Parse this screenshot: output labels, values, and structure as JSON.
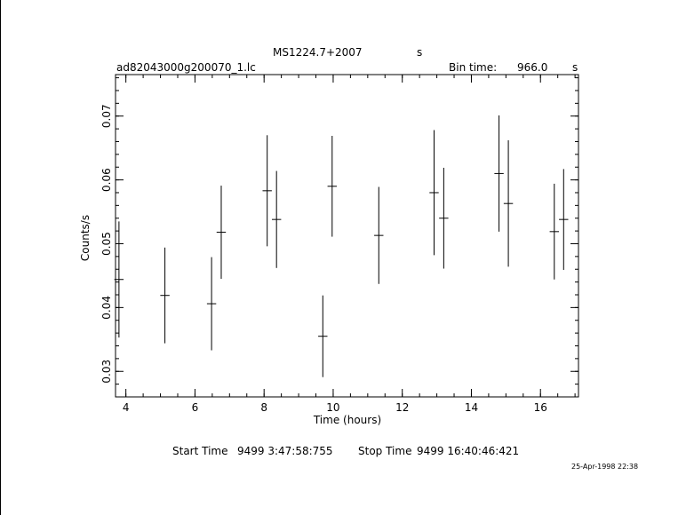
{
  "header": {
    "object": "MS1224.7+2007",
    "object_unit": "s",
    "file": "ad82043000g200070_1.lc",
    "bin_label": "Bin time:",
    "bin_value": "966.0",
    "bin_unit": "s"
  },
  "footer": {
    "start_label": "Start Time",
    "start_value": "9499  3:47:58:755",
    "stop_label": "Stop Time",
    "stop_value": "9499 16:40:46:421",
    "stamp": "25-Apr-1998 22:38"
  },
  "chart_data": {
    "type": "scatter",
    "xlabel": "Time (hours)",
    "ylabel": "Counts/s",
    "xlim": [
      3.7,
      17.1
    ],
    "ylim": [
      0.026,
      0.0765
    ],
    "xticks": [
      4,
      6,
      8,
      10,
      12,
      14,
      16
    ],
    "yticks": [
      0.03,
      0.04,
      0.05,
      0.06,
      0.07
    ],
    "yticks_minor_step": 0.002,
    "xticks_minor_step": 0.5,
    "x_bin_halfwidth": 0.134,
    "points": [
      {
        "x": 3.8,
        "y": 0.0444,
        "yerr": 0.0091
      },
      {
        "x": 5.13,
        "y": 0.0419,
        "yerr": 0.0075
      },
      {
        "x": 6.48,
        "y": 0.0406,
        "yerr": 0.0073
      },
      {
        "x": 6.76,
        "y": 0.0518,
        "yerr": 0.0073
      },
      {
        "x": 8.09,
        "y": 0.0583,
        "yerr": 0.0087
      },
      {
        "x": 8.36,
        "y": 0.0538,
        "yerr": 0.0076
      },
      {
        "x": 9.7,
        "y": 0.0355,
        "yerr": 0.0064
      },
      {
        "x": 9.97,
        "y": 0.059,
        "yerr": 0.0079
      },
      {
        "x": 11.32,
        "y": 0.0513,
        "yerr": 0.0076
      },
      {
        "x": 12.92,
        "y": 0.058,
        "yerr": 0.0098
      },
      {
        "x": 13.2,
        "y": 0.054,
        "yerr": 0.0079
      },
      {
        "x": 14.8,
        "y": 0.061,
        "yerr": 0.0091
      },
      {
        "x": 15.07,
        "y": 0.0563,
        "yerr": 0.0099
      },
      {
        "x": 16.4,
        "y": 0.0519,
        "yerr": 0.0075
      },
      {
        "x": 16.67,
        "y": 0.0538,
        "yerr": 0.0079
      }
    ]
  }
}
